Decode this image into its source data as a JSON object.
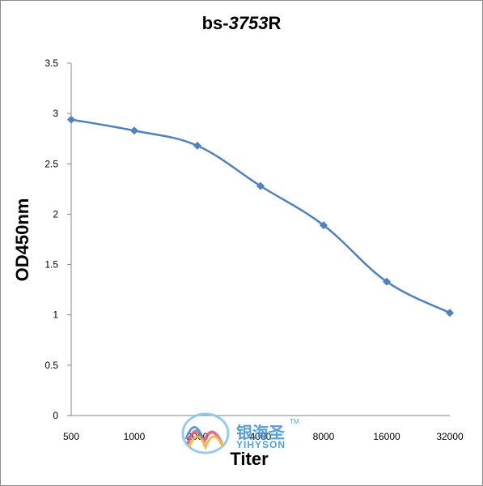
{
  "chart_data": {
    "type": "line",
    "title_prefix": "bs-",
    "title_italic": "3753",
    "title_suffix": "R",
    "xlabel": "Titer",
    "ylabel": "OD450nm",
    "categories": [
      "500",
      "1000",
      "2000",
      "4000",
      "8000",
      "16000",
      "32000"
    ],
    "series": [
      {
        "values": [
          2.94,
          2.83,
          2.68,
          2.28,
          1.89,
          1.33,
          1.02
        ]
      }
    ],
    "ylim": [
      0,
      3.5
    ],
    "yticks": [
      "0",
      "0.5",
      "1",
      "1.5",
      "2",
      "2.5",
      "3",
      "3.5"
    ],
    "grid": false,
    "line_color": "#4f81bd"
  },
  "watermark": {
    "text_cn": "银海圣",
    "text_en": "YIHYSON",
    "tm": "TM"
  }
}
